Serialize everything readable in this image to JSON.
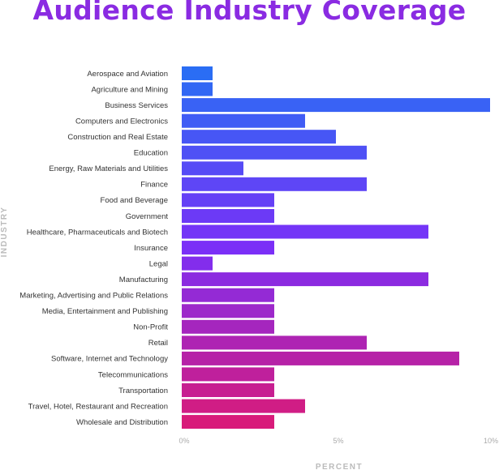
{
  "chart_data": {
    "type": "bar",
    "orientation": "horizontal",
    "title": "Audience Industry Coverage",
    "xlabel": "PERCENT",
    "ylabel": "INDUSTRY",
    "xlim": [
      0,
      10
    ],
    "x_ticks": [
      "0%",
      "5%",
      "10%"
    ],
    "grid": false,
    "categories": [
      "Aerospace and Aviation",
      "Agriculture and Mining",
      "Business Services",
      "Computers and Electronics",
      "Construction and Real Estate",
      "Education",
      "Energy, Raw Materials and Utilities",
      "Finance",
      "Food and Beverage",
      "Government",
      "Healthcare, Pharmaceuticals and Biotech",
      "Insurance",
      "Legal",
      "Manufacturing",
      "Marketing, Advertising and Public Relations",
      "Media, Entertainment and Publishing",
      "Non-Profit",
      "Retail",
      "Software, Internet and Technology",
      "Telecommunications",
      "Transportation",
      "Travel, Hotel, Restaurant and Recreation",
      "Wholesale and Distribution"
    ],
    "values": [
      1,
      1,
      10,
      4,
      5,
      6,
      2,
      6,
      3,
      3,
      8,
      3,
      1,
      8,
      3,
      3,
      3,
      6,
      9,
      3,
      3,
      4,
      3
    ],
    "colors": {
      "gradient_start": "#2a6df4",
      "gradient_mid": "#7b2ff7",
      "gradient_end": "#d81b7a"
    }
  }
}
